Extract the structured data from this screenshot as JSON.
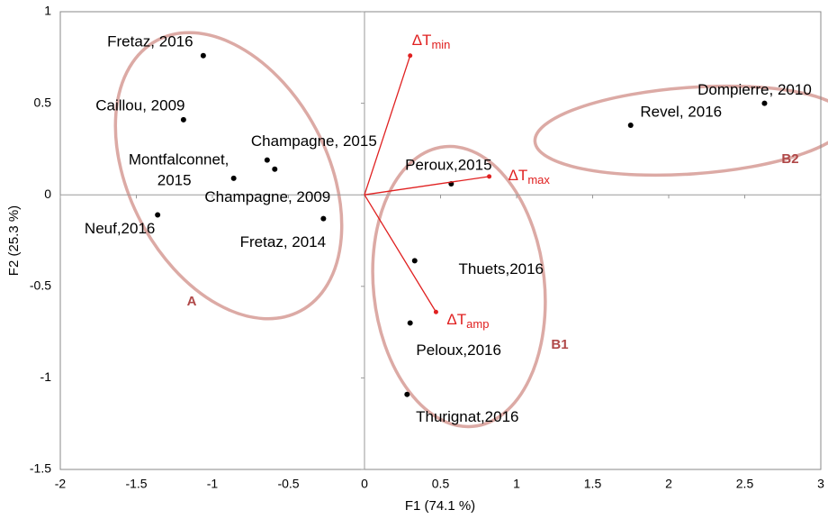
{
  "chart_data": {
    "type": "biplot",
    "x_label": "F1 (74.1 %)",
    "y_label": "F2 (25.3 %)",
    "xlim": [
      -2,
      3
    ],
    "ylim": [
      -1.5,
      1
    ],
    "xticks": [
      -2,
      -1.5,
      -1,
      -0.5,
      0,
      0.5,
      1,
      1.5,
      2,
      2.5,
      3
    ],
    "yticks": [
      -1.5,
      -1,
      -0.5,
      0,
      0.5,
      1
    ],
    "point_color": "#000000",
    "vector_color": "#e02020",
    "points": [
      {
        "label": [
          "Fretaz,  2016"
        ],
        "x": -1.06,
        "y": 0.76
      },
      {
        "label": [
          "Caillou, 2009"
        ],
        "x": -1.19,
        "y": 0.41
      },
      {
        "label": [
          "Champagne, 2015"
        ],
        "x": -0.64,
        "y": 0.19
      },
      {
        "label": [
          "Champagne, 2009"
        ],
        "x": -0.59,
        "y": 0.14
      },
      {
        "label": [
          "Montfalconnet,",
          "2015"
        ],
        "x": -0.86,
        "y": 0.09
      },
      {
        "label": [
          "Fretaz,  2014"
        ],
        "x": -0.27,
        "y": -0.13
      },
      {
        "label": [
          "Neuf,2016"
        ],
        "x": -1.36,
        "y": -0.11
      },
      {
        "label": [
          "Peroux,2015"
        ],
        "x": 0.57,
        "y": 0.06
      },
      {
        "label": [
          "Thuets,2016"
        ],
        "x": 0.33,
        "y": -0.36
      },
      {
        "label": [
          "Peloux,2016"
        ],
        "x": 0.3,
        "y": -0.7
      },
      {
        "label": [
          "Thurignat,2016"
        ],
        "x": 0.28,
        "y": -1.09
      },
      {
        "label": [
          "Revel, 2016"
        ],
        "x": 1.75,
        "y": 0.38
      },
      {
        "label": [
          "Dompierre, 2010"
        ],
        "x": 2.63,
        "y": 0.5
      }
    ],
    "vectors": [
      {
        "label": "ΔT",
        "subscript": "min",
        "x": 0.3,
        "y": 0.76
      },
      {
        "label": "ΔT",
        "subscript": "max",
        "x": 0.82,
        "y": 0.1
      },
      {
        "label": "ΔT",
        "subscript": "amp",
        "x": 0.47,
        "y": -0.64
      }
    ],
    "groups": [
      "A",
      "B1",
      "B2"
    ]
  }
}
